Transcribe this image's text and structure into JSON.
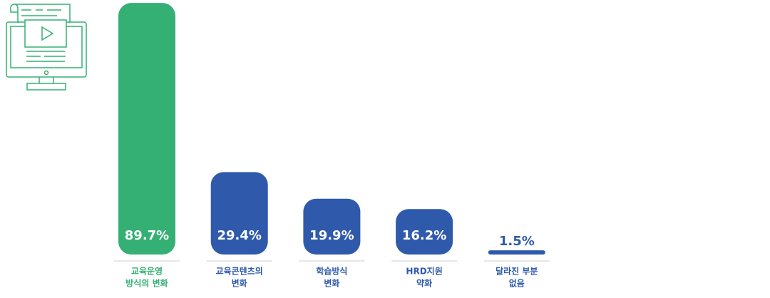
{
  "chart_data": {
    "type": "bar",
    "categories": [
      [
        "교육운영",
        "방식의 변화"
      ],
      [
        "교육콘텐츠의",
        "변화"
      ],
      [
        "학습방식",
        "변화"
      ],
      [
        "HRD지원",
        "약화"
      ],
      [
        "달라진 부분",
        "없음"
      ]
    ],
    "values": [
      89.7,
      29.4,
      19.9,
      16.2,
      1.5
    ],
    "value_labels": [
      "89.7%",
      "29.4%",
      "19.9%",
      "16.2%",
      "1.5%"
    ],
    "colors": [
      "#35b074",
      "#2f5aab",
      "#2f5aab",
      "#2f5aab",
      "#2f5aab"
    ],
    "ylim": [
      0,
      90
    ]
  }
}
